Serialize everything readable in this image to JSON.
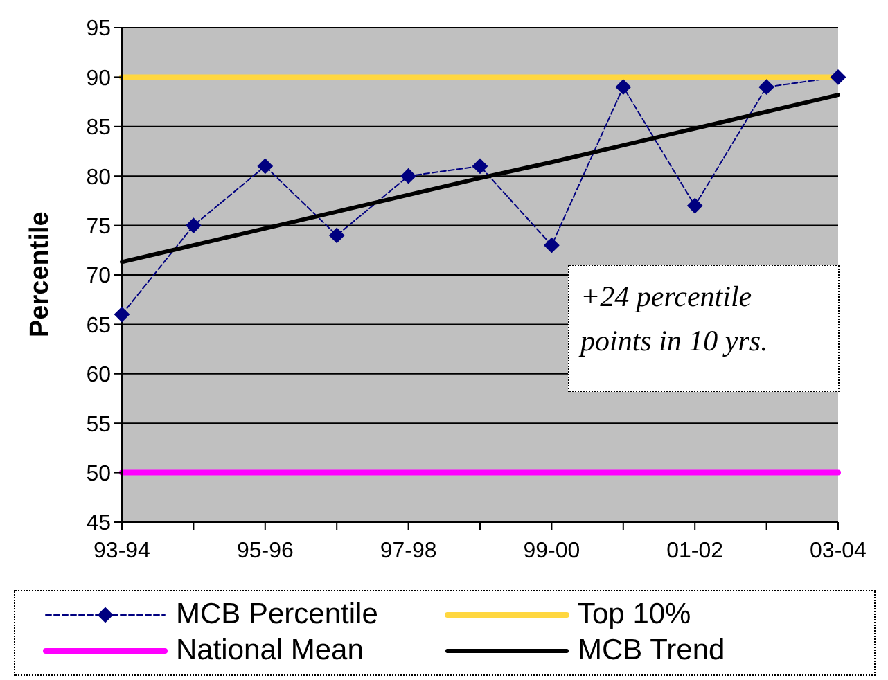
{
  "chart_data": {
    "type": "line",
    "ylabel": "Percentile",
    "categories": [
      "93-94",
      null,
      "95-96",
      null,
      "97-98",
      null,
      "99-00",
      null,
      "01-02",
      null,
      "03-04"
    ],
    "series": [
      {
        "name": "MCB Percentile",
        "color": "#000080",
        "values": [
          66,
          75,
          81,
          74,
          80,
          81,
          73,
          89,
          77,
          89,
          90
        ],
        "marker": "diamond",
        "line_style": "dashed"
      },
      {
        "name": "Top 10%",
        "color": "#ffd740",
        "values": [
          90,
          90,
          90,
          90,
          90,
          90,
          90,
          90,
          90,
          90,
          90
        ],
        "marker": "none",
        "line_style": "solid"
      },
      {
        "name": "National Mean",
        "color": "#ff00ff",
        "values": [
          50,
          50,
          50,
          50,
          50,
          50,
          50,
          50,
          50,
          50,
          50
        ],
        "marker": "none",
        "line_style": "solid"
      },
      {
        "name": "MCB Trend",
        "color": "#000000",
        "values": [
          71.3,
          73.0,
          74.7,
          76.4,
          78.1,
          79.8,
          81.4,
          83.1,
          84.8,
          86.5,
          88.2
        ],
        "marker": "none",
        "line_style": "solid"
      }
    ],
    "ylim": [
      45,
      95
    ],
    "yticks": [
      45,
      50,
      55,
      60,
      65,
      70,
      75,
      80,
      85,
      90,
      95
    ],
    "grid": "y",
    "legend": "bottom",
    "annotations": [
      "+24 percentile points in 10 yrs."
    ]
  }
}
